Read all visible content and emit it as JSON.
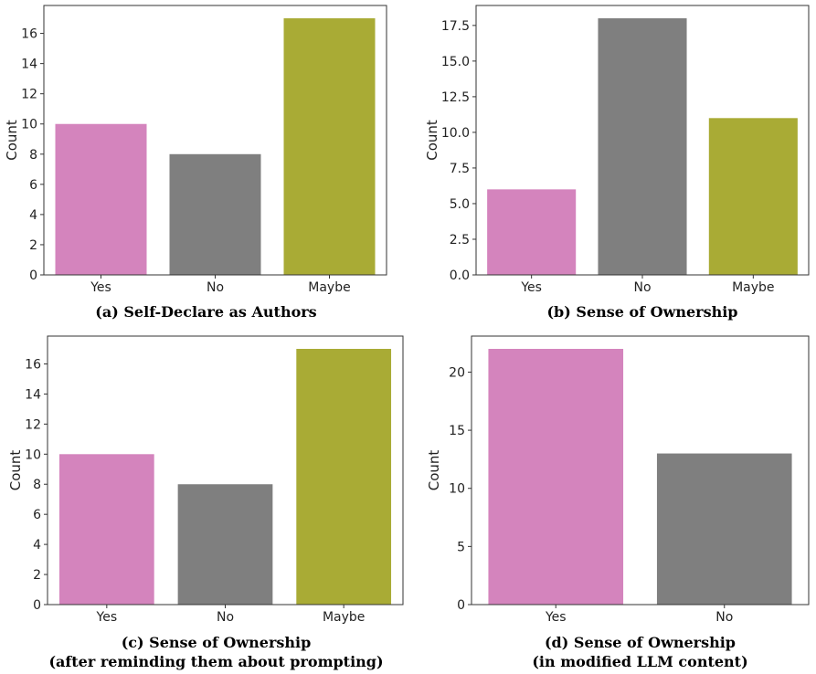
{
  "colors": {
    "yes": "#d484bd",
    "no": "#7f7f7f",
    "maybe": "#a9ab35"
  },
  "chart_data": [
    {
      "type": "bar",
      "categories": [
        "Yes",
        "No",
        "Maybe"
      ],
      "values": [
        10,
        8,
        17
      ],
      "ylabel": "Count",
      "ylim": [
        0,
        17.85
      ],
      "yticks": [
        "0",
        "2",
        "4",
        "6",
        "8",
        "10",
        "12",
        "14",
        "16"
      ],
      "caption": [
        "(a) Self-Declare as Authors"
      ]
    },
    {
      "type": "bar",
      "categories": [
        "Yes",
        "No",
        "Maybe"
      ],
      "values": [
        6,
        18,
        11
      ],
      "ylabel": "Count",
      "ylim": [
        0,
        18.9
      ],
      "yticks": [
        "0.0",
        "2.5",
        "5.0",
        "7.5",
        "10.0",
        "12.5",
        "15.0",
        "17.5"
      ],
      "caption": [
        "(b) Sense of Ownership"
      ]
    },
    {
      "type": "bar",
      "categories": [
        "Yes",
        "No",
        "Maybe"
      ],
      "values": [
        10,
        8,
        17
      ],
      "ylabel": "Count",
      "ylim": [
        0,
        17.85
      ],
      "yticks": [
        "0",
        "2",
        "4",
        "6",
        "8",
        "10",
        "12",
        "14",
        "16"
      ],
      "caption": [
        "(c) Sense of Ownership",
        "(after reminding them about prompting)"
      ]
    },
    {
      "type": "bar",
      "categories": [
        "Yes",
        "No"
      ],
      "values": [
        22,
        13
      ],
      "ylabel": "Count",
      "ylim": [
        0,
        23.1
      ],
      "yticks": [
        "0",
        "5",
        "10",
        "15",
        "20"
      ],
      "caption": [
        "(d) Sense of Ownership",
        "(in modified LLM content)"
      ]
    }
  ]
}
